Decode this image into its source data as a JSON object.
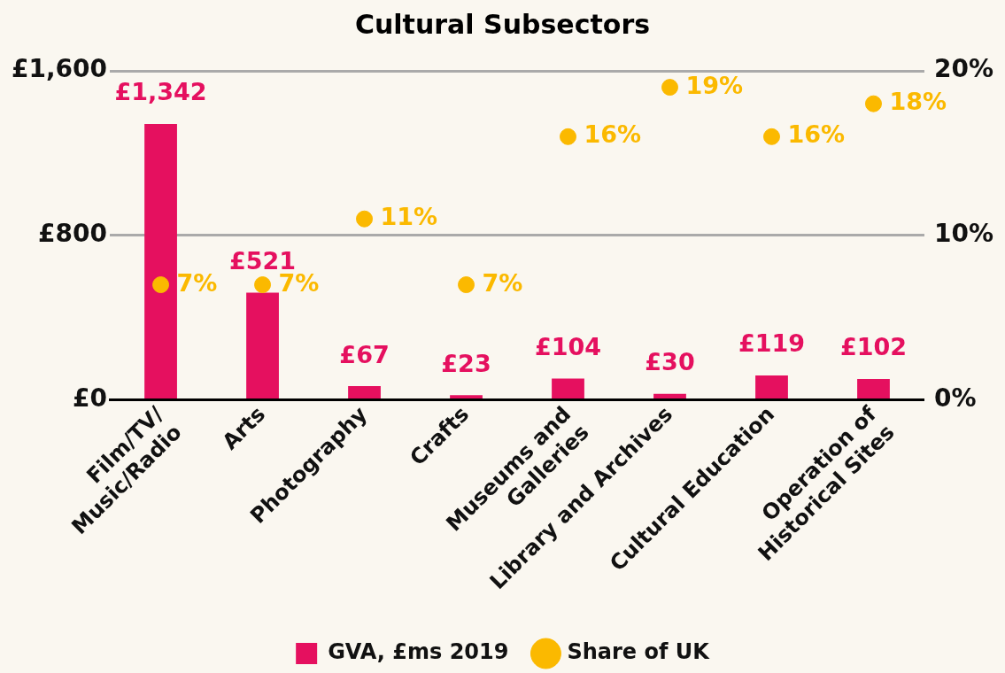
{
  "chart_data": {
    "type": "bar",
    "title": "Cultural Subsectors",
    "categories": [
      "Film/TV/\nMusic/Radio",
      "Arts",
      "Photography",
      "Crafts",
      "Museums and\nGalleries",
      "Library and Archives",
      "Cultural Education",
      "Operation of\nHistorical Sites"
    ],
    "series": [
      {
        "name": "GVA, £ms 2019",
        "color": "#e5105f",
        "values": [
          1342,
          521,
          67,
          23,
          104,
          30,
          119,
          102
        ],
        "value_labels": [
          "£1,342",
          "£521",
          "£67",
          "£23",
          "£104",
          "£30",
          "£119",
          "£102"
        ]
      },
      {
        "name": "Share of UK",
        "type": "scatter",
        "axis": "y2",
        "color": "#fbb900",
        "x": [
          "Film/TV/\nMusic/Radio",
          "Arts",
          "Photography",
          "Crafts",
          "Museums and\nGalleries",
          "Library and Archives",
          "Cultural Education",
          "Operation of\nHistorical Sites"
        ],
        "values": [
          7,
          7,
          11,
          7,
          16,
          19,
          16,
          18
        ],
        "value_labels": [
          "7%",
          "7%",
          "11%",
          "7%",
          "16%",
          "19%",
          "16%",
          "18%"
        ]
      }
    ],
    "ylim": [
      0,
      1600
    ],
    "yticks": [
      {
        "value": 0,
        "label": "£0"
      },
      {
        "value": 800,
        "label": "£800"
      },
      {
        "value": 1600,
        "label": "£1,600"
      }
    ],
    "y2lim": [
      0,
      20
    ],
    "y2ticks": [
      {
        "value": 0,
        "label": "0%"
      },
      {
        "value": 10,
        "label": "10%"
      },
      {
        "value": 20,
        "label": "20%"
      }
    ],
    "grid": "y",
    "legend": "bottom",
    "marker": "circle"
  }
}
